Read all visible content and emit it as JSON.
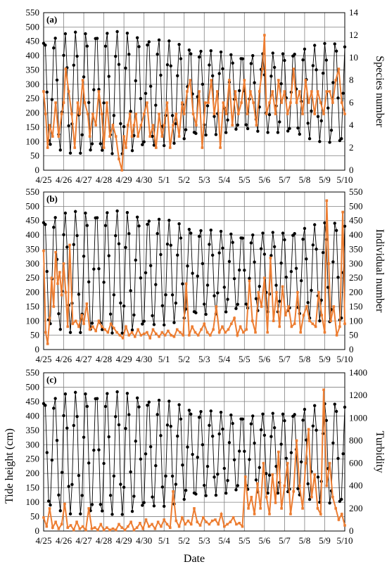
{
  "chart_data": [
    {
      "type": "line",
      "panel_label": "(a)",
      "title": "",
      "x_ticks": [
        "4/25",
        "4/26",
        "4/27",
        "4/28",
        "4/29",
        "4/30",
        "5/1",
        "5/2",
        "5/3",
        "5/4",
        "5/5",
        "5/6",
        "5/7",
        "5/8",
        "5/9",
        "5/10"
      ],
      "xlim": [
        0,
        15
      ],
      "y_left": {
        "label": "",
        "lim": [
          0,
          550
        ],
        "ticks": [
          0,
          50,
          100,
          150,
          200,
          250,
          300,
          350,
          400,
          450,
          500,
          550
        ]
      },
      "y_right": {
        "label": "Species number",
        "lim": [
          0,
          14
        ],
        "ticks": [
          0,
          2,
          4,
          6,
          8,
          10,
          12,
          14
        ]
      },
      "grid": true,
      "series": [
        {
          "axis": "left",
          "color": "#000000",
          "marker": "circle"
        },
        {
          "axis": "right",
          "color": "#ED7D31",
          "marker": "square",
          "x": [
            0,
            0.1,
            0.2,
            0.3,
            0.45,
            0.6,
            0.75,
            0.9,
            1.0,
            1.1,
            1.25,
            1.4,
            1.55,
            1.7,
            1.8,
            1.95,
            2.05,
            2.2,
            2.3,
            2.45,
            2.6,
            2.75,
            2.9,
            3.0,
            3.15,
            3.3,
            3.45,
            3.6,
            3.75,
            3.9,
            4.0,
            4.1,
            4.2,
            4.3,
            4.4,
            4.5,
            4.6,
            4.7,
            4.85,
            5.0,
            5.15,
            5.3,
            5.45,
            5.6,
            5.75,
            5.9,
            6.0,
            6.15,
            6.3,
            6.45,
            6.6,
            6.75,
            6.9,
            7.0,
            7.15,
            7.3,
            7.45,
            7.6,
            7.75,
            7.9,
            8.05,
            8.2,
            8.35,
            8.5,
            8.65,
            8.8,
            8.95,
            9.1,
            9.25,
            9.4,
            9.55,
            9.7,
            9.85,
            10.0,
            10.15,
            10.3,
            10.45,
            10.6,
            10.75,
            10.9,
            11.0,
            11.1,
            11.25,
            11.4,
            11.55,
            11.7,
            11.85,
            12.0,
            12.15,
            12.3,
            12.45,
            12.6,
            12.75,
            12.9,
            13.05,
            13.2,
            13.35,
            13.5,
            13.65,
            13.8,
            13.95,
            14.1,
            14.25,
            14.4,
            14.55,
            14.7,
            14.85,
            15.0
          ],
          "y": [
            7,
            5,
            2,
            4,
            3,
            6,
            3,
            5,
            6,
            9,
            7,
            5,
            2,
            6,
            5,
            8,
            6,
            5,
            3,
            5,
            4,
            7,
            5,
            2,
            6,
            3,
            4,
            3,
            1,
            0,
            3,
            2,
            4,
            5,
            3,
            4,
            5,
            3,
            4,
            5,
            6,
            3,
            4,
            2,
            5,
            3,
            4,
            6,
            2,
            4,
            5,
            3,
            6,
            5,
            7,
            8,
            5,
            4,
            7,
            2,
            6,
            6,
            8,
            5,
            7,
            2,
            6,
            5,
            8,
            4,
            7,
            5,
            6,
            8,
            5,
            7,
            6,
            4,
            7,
            9,
            12,
            5,
            6,
            7,
            5,
            8,
            6,
            7,
            5,
            6,
            9,
            6,
            7,
            5,
            8,
            6,
            7,
            5,
            7,
            6,
            5,
            7,
            7,
            6,
            8,
            9,
            6,
            5
          ]
        }
      ]
    },
    {
      "type": "line",
      "panel_label": "(b)",
      "title": "",
      "x_ticks": [
        "4/25",
        "4/26",
        "4/27",
        "4/28",
        "4/29",
        "4/30",
        "5/1",
        "5/2",
        "5/3",
        "5/4",
        "5/5",
        "5/6",
        "5/7",
        "5/8",
        "5/9",
        "5/10"
      ],
      "xlim": [
        0,
        15
      ],
      "y_left": {
        "label": "",
        "lim": [
          0,
          550
        ],
        "ticks": [
          0,
          50,
          100,
          150,
          200,
          250,
          300,
          350,
          400,
          450,
          500,
          550
        ]
      },
      "y_right": {
        "label": "Individual number",
        "lim": [
          0,
          550
        ],
        "ticks": [
          0,
          50,
          100,
          150,
          200,
          250,
          300,
          350,
          400,
          450,
          500,
          550
        ]
      },
      "grid": true,
      "series": [
        {
          "axis": "left",
          "color": "#000000",
          "marker": "circle"
        },
        {
          "axis": "right",
          "color": "#ED7D31",
          "marker": "square",
          "x": [
            0,
            0.1,
            0.2,
            0.3,
            0.4,
            0.5,
            0.6,
            0.7,
            0.8,
            0.9,
            1.0,
            1.1,
            1.2,
            1.3,
            1.45,
            1.6,
            1.75,
            1.9,
            2.0,
            2.15,
            2.3,
            2.45,
            2.6,
            2.75,
            2.9,
            3.05,
            3.2,
            3.35,
            3.5,
            3.65,
            3.8,
            3.95,
            4.1,
            4.25,
            4.4,
            4.55,
            4.7,
            4.85,
            5.0,
            5.15,
            5.3,
            5.45,
            5.6,
            5.75,
            5.9,
            6.05,
            6.2,
            6.35,
            6.5,
            6.65,
            6.8,
            6.95,
            7.1,
            7.25,
            7.4,
            7.55,
            7.7,
            7.85,
            8.0,
            8.15,
            8.3,
            8.45,
            8.6,
            8.75,
            8.9,
            9.05,
            9.2,
            9.35,
            9.5,
            9.65,
            9.8,
            9.95,
            10.1,
            10.25,
            10.4,
            10.55,
            10.7,
            10.85,
            11.0,
            11.15,
            11.3,
            11.45,
            11.6,
            11.75,
            11.9,
            12.05,
            12.2,
            12.35,
            12.5,
            12.65,
            12.8,
            12.95,
            13.1,
            13.25,
            13.4,
            13.55,
            13.7,
            13.85,
            14.0,
            14.1,
            14.2,
            14.3,
            14.45,
            14.6,
            14.75,
            14.9,
            15.0
          ],
          "y": [
            345,
            60,
            20,
            110,
            250,
            150,
            340,
            230,
            270,
            190,
            300,
            200,
            80,
            365,
            90,
            100,
            80,
            120,
            90,
            160,
            70,
            80,
            65,
            100,
            80,
            70,
            60,
            90,
            75,
            60,
            50,
            40,
            80,
            50,
            60,
            45,
            70,
            50,
            55,
            60,
            40,
            70,
            55,
            45,
            60,
            50,
            65,
            50,
            45,
            70,
            60,
            50,
            230,
            50,
            80,
            60,
            50,
            70,
            90,
            60,
            50,
            70,
            150,
            60,
            80,
            60,
            70,
            90,
            110,
            50,
            80,
            60,
            70,
            240,
            100,
            60,
            200,
            150,
            250,
            60,
            320,
            100,
            200,
            80,
            220,
            120,
            150,
            80,
            90,
            200,
            60,
            120,
            150,
            100,
            90,
            80,
            200,
            120,
            60,
            520,
            300,
            100,
            150,
            50,
            80,
            480,
            90
          ]
        }
      ]
    },
    {
      "type": "line",
      "panel_label": "(c)",
      "title": "",
      "xlabel": "Date",
      "x_ticks": [
        "4/25",
        "4/26",
        "4/27",
        "4/28",
        "4/29",
        "4/30",
        "5/1",
        "5/2",
        "5/3",
        "5/4",
        "5/5",
        "5/6",
        "5/7",
        "5/8",
        "5/9",
        "5/10"
      ],
      "xlim": [
        0,
        15
      ],
      "y_left": {
        "label": "Tide height (cm)",
        "lim": [
          0,
          550
        ],
        "ticks": [
          0,
          50,
          100,
          150,
          200,
          250,
          300,
          350,
          400,
          450,
          500,
          550
        ]
      },
      "y_right": {
        "label": "Turbidity",
        "lim": [
          0,
          1400
        ],
        "ticks": [
          0,
          200,
          400,
          600,
          800,
          1000,
          1200,
          1400
        ]
      },
      "grid": true,
      "series": [
        {
          "axis": "left",
          "color": "#000000",
          "marker": "circle"
        },
        {
          "axis": "right",
          "color": "#ED7D31",
          "marker": "square",
          "x": [
            0,
            0.15,
            0.3,
            0.45,
            0.6,
            0.75,
            0.9,
            1.05,
            1.2,
            1.35,
            1.5,
            1.65,
            1.8,
            1.95,
            2.1,
            2.25,
            2.4,
            2.55,
            2.7,
            2.85,
            3.0,
            3.15,
            3.3,
            3.45,
            3.6,
            3.75,
            3.9,
            4.05,
            4.2,
            4.35,
            4.5,
            4.65,
            4.8,
            4.95,
            5.1,
            5.25,
            5.4,
            5.55,
            5.7,
            5.85,
            6.0,
            6.15,
            6.3,
            6.45,
            6.6,
            6.75,
            6.9,
            7.05,
            7.2,
            7.35,
            7.5,
            7.65,
            7.8,
            7.95,
            8.1,
            8.25,
            8.4,
            8.55,
            8.7,
            8.85,
            9.0,
            9.15,
            9.3,
            9.45,
            9.6,
            9.75,
            9.9,
            10.05,
            10.2,
            10.35,
            10.5,
            10.65,
            10.8,
            10.95,
            11.1,
            11.25,
            11.4,
            11.55,
            11.7,
            11.85,
            12.0,
            12.15,
            12.3,
            12.45,
            12.6,
            12.75,
            12.9,
            13.05,
            13.2,
            13.35,
            13.5,
            13.65,
            13.8,
            13.95,
            14.1,
            14.25,
            14.4,
            14.55,
            14.7,
            14.85,
            15.0
          ],
          "y": [
            120,
            40,
            200,
            30,
            80,
            20,
            60,
            240,
            30,
            50,
            10,
            80,
            20,
            40,
            10,
            200,
            20,
            30,
            10,
            60,
            10,
            30,
            10,
            20,
            10,
            60,
            30,
            10,
            40,
            80,
            10,
            30,
            70,
            20,
            100,
            40,
            60,
            20,
            80,
            40,
            100,
            60,
            30,
            350,
            90,
            40,
            120,
            60,
            90,
            60,
            200,
            80,
            50,
            120,
            80,
            60,
            90,
            100,
            60,
            150,
            40,
            60,
            80,
            120,
            60,
            70,
            40,
            480,
            200,
            300,
            150,
            420,
            200,
            600,
            300,
            150,
            500,
            250,
            700,
            200,
            400,
            600,
            150,
            350,
            800,
            400,
            200,
            600,
            900,
            300,
            500,
            200,
            150,
            1250,
            400,
            600,
            300,
            200,
            100,
            150,
            50
          ]
        }
      ]
    }
  ]
}
